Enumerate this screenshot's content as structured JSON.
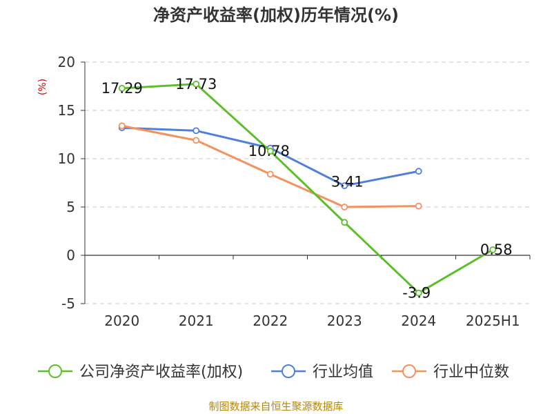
{
  "chart_data": {
    "type": "line",
    "title": "净资产收益率(加权)历年情况(%)",
    "ylabel": "(%)",
    "xlabel": "",
    "categories": [
      "2020",
      "2021",
      "2022",
      "2023",
      "2024",
      "2025H1"
    ],
    "ylim": [
      -5,
      20
    ],
    "yticks": [
      -5,
      0,
      5,
      10,
      15,
      20
    ],
    "grid": true,
    "legend_position": "bottom",
    "series": [
      {
        "name": "公司净资产收益率(加权)",
        "color": "#5cbf2a",
        "values": [
          17.29,
          17.73,
          10.78,
          3.41,
          -3.9,
          0.58
        ],
        "labels": [
          "17.29",
          "17.73",
          "10.78",
          "3.41",
          "-3.9",
          "0.58"
        ]
      },
      {
        "name": "行业均值",
        "color": "#4f7fd9",
        "values": [
          13.2,
          12.9,
          11.1,
          7.2,
          8.7,
          null
        ]
      },
      {
        "name": "行业中位数",
        "color": "#f5915c",
        "values": [
          13.4,
          11.9,
          8.4,
          5.0,
          5.1,
          null
        ]
      }
    ],
    "source": "制图数据来自恒生聚源数据库"
  }
}
